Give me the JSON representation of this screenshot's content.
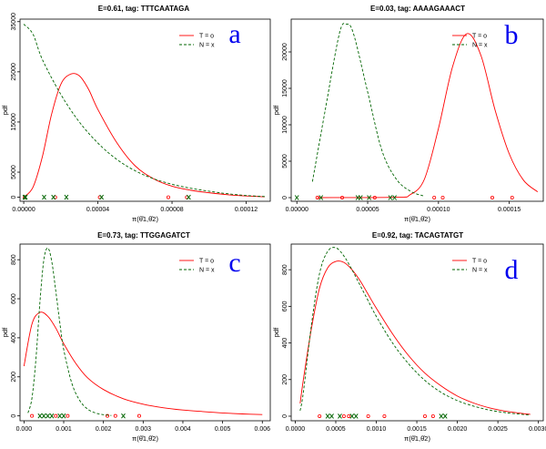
{
  "figure": {
    "colors": {
      "T": "#ff0000",
      "N": "#006400",
      "panel_letter": "#0000ee"
    }
  },
  "chart_data": [
    {
      "type": "line",
      "panel_letter": "a",
      "title": "E=0.61, tag: TTTCAATAGA",
      "xlabel": "π(θ̂1,θ̂2)",
      "ylabel": "pdf",
      "xlim": [
        -2e-06,
        0.000133
      ],
      "ylim": [
        -800,
        35500
      ],
      "x_ticks": [
        0.0,
        4e-05,
        8e-05,
        0.00012
      ],
      "x_tick_labels": [
        "0.00000",
        "0.00004",
        "0.00008",
        "0.00012"
      ],
      "y_ticks": [
        0,
        5000,
        15000,
        25000,
        35000
      ],
      "y_tick_labels": [
        "0",
        "5000",
        "15000",
        "25000",
        "35000"
      ],
      "legend": {
        "position": "top-right",
        "entries": [
          "T = o",
          "N = x"
        ]
      },
      "grid": false,
      "series": [
        {
          "name": "T = o",
          "style": "solid",
          "color": "#ff0000",
          "x": [
            0.0,
            5e-06,
            1e-05,
            1.5e-05,
            2e-05,
            2.5e-05,
            3e-05,
            3.5e-05,
            4e-05,
            5e-05,
            6e-05,
            7e-05,
            8e-05,
            9e-05,
            0.0001,
            0.00011,
            0.00012,
            0.00013
          ],
          "y": [
            0,
            2000,
            8000,
            16500,
            22500,
            24500,
            24200,
            21500,
            17500,
            11000,
            6300,
            3700,
            2200,
            1400,
            900,
            500,
            250,
            100
          ],
          "points": [
            5e-07,
            1.7e-05,
            4.1e-05,
            7.8e-05,
            8.8e-05
          ]
        },
        {
          "name": "N = x",
          "style": "dashed",
          "color": "#006400",
          "x": [
            0.0,
            5e-06,
            1e-05,
            2e-05,
            3e-05,
            4e-05,
            5e-05,
            6e-05,
            7e-05,
            8e-05,
            9e-05,
            0.0001,
            0.00011,
            0.00012,
            0.00013
          ],
          "y": [
            34500,
            32500,
            27500,
            20500,
            15000,
            10800,
            7600,
            5300,
            3700,
            2600,
            1800,
            1200,
            700,
            350,
            150
          ],
          "points": [
            5e-07,
            1e-06,
            1.1e-05,
            1.6e-05,
            2.3e-05,
            4.2e-05,
            8.9e-05
          ]
        }
      ]
    },
    {
      "type": "line",
      "panel_letter": "b",
      "title": "E=0.03, tag: AAAAGAAACT",
      "xlabel": "π(θ̂1,θ̂2)",
      "ylabel": "pdf",
      "xlim": [
        -4e-06,
        0.000174
      ],
      "ylim": [
        -500,
        24500
      ],
      "x_ticks": [
        0.0,
        5e-05,
        0.0001,
        0.00015
      ],
      "x_tick_labels": [
        "0.00000",
        "0.00005",
        "0.00010",
        "0.00015"
      ],
      "y_ticks": [
        0,
        5000,
        10000,
        15000,
        20000
      ],
      "y_tick_labels": [
        "0",
        "5000",
        "10000",
        "15000",
        "20000"
      ],
      "legend": {
        "position": "top-right",
        "entries": [
          "T = o",
          "N = x"
        ]
      },
      "grid": false,
      "series": [
        {
          "name": "T = o",
          "style": "solid",
          "color": "#ff0000",
          "x": [
            1.45e-05,
            7e-05,
            8e-05,
            9e-05,
            0.0001,
            0.00011,
            0.00012,
            0.00013,
            0.00014,
            0.00015,
            0.00016,
            0.00017
          ],
          "y": [
            0,
            50,
            400,
            2500,
            9500,
            18000,
            22500,
            19500,
            12000,
            6000,
            2400,
            800
          ],
          "points": [
            1.45e-05,
            3.2e-05,
            5.5e-05,
            9.7e-05,
            0.000103,
            0.000138,
            0.000152
          ]
        },
        {
          "name": "N = x",
          "style": "dashed",
          "color": "#006400",
          "x": [
            1.1e-05,
            2e-05,
            3e-05,
            3.5e-05,
            4e-05,
            5e-05,
            6e-05,
            7e-05,
            8e-05,
            9e-05
          ],
          "y": [
            2200,
            12000,
            22500,
            23800,
            22500,
            14500,
            6500,
            2600,
            900,
            200
          ],
          "points": [
            0.0,
            1.7e-05,
            4.3e-05,
            4.5e-05,
            5.1e-05,
            6.6e-05,
            6.9e-05
          ]
        }
      ]
    },
    {
      "type": "line",
      "panel_letter": "c",
      "title": "E=0.73, tag: TTGGAGATCT",
      "xlabel": "π(θ̂1,θ̂2)",
      "ylabel": "pdf",
      "xlim": [
        -0.0001,
        0.0062
      ],
      "ylim": [
        -25,
        880
      ],
      "x_ticks": [
        0.0,
        0.001,
        0.002,
        0.003,
        0.004,
        0.005,
        0.006
      ],
      "x_tick_labels": [
        "0.000",
        "0.001",
        "0.002",
        "0.003",
        "0.004",
        "0.005",
        "0.006"
      ],
      "y_ticks": [
        0,
        200,
        400,
        600,
        800
      ],
      "y_tick_labels": [
        "0",
        "200",
        "400",
        "600",
        "800"
      ],
      "legend": {
        "position": "top-right",
        "entries": [
          "T = o",
          "N = x"
        ]
      },
      "grid": false,
      "series": [
        {
          "name": "T = o",
          "style": "solid",
          "color": "#ff0000",
          "x": [
            0.0,
            0.0002,
            0.0004,
            0.0006,
            0.0008,
            0.001,
            0.0013,
            0.0016,
            0.002,
            0.0025,
            0.003,
            0.0035,
            0.004,
            0.0045,
            0.005,
            0.0055,
            0.006
          ],
          "y": [
            255,
            470,
            530,
            510,
            450,
            370,
            270,
            195,
            135,
            88,
            60,
            42,
            30,
            22,
            15,
            10,
            7
          ],
          "points": [
            0.0002,
            0.0008,
            0.0011,
            0.0021,
            0.0023,
            0.0029
          ]
        },
        {
          "name": "N = x",
          "style": "dashed",
          "color": "#006400",
          "x": [
            0.0001,
            0.0002,
            0.0003,
            0.0004,
            0.0005,
            0.0006,
            0.0007,
            0.0008,
            0.0009,
            0.001,
            0.0012,
            0.0014,
            0.0016,
            0.0018,
            0.002,
            0.0022
          ],
          "y": [
            15,
            90,
            290,
            580,
            800,
            860,
            790,
            640,
            480,
            340,
            170,
            80,
            35,
            15,
            6,
            2
          ],
          "points": [
            0.0004,
            0.0005,
            0.0006,
            0.0007,
            0.0009,
            0.001,
            0.0025
          ]
        }
      ]
    },
    {
      "type": "line",
      "panel_letter": "d",
      "title": "E=0.92, tag: TACAGTATGT",
      "xlabel": "π(θ̂1,θ̂2)",
      "ylabel": "pdf",
      "xlim": [
        -5e-05,
        0.00306
      ],
      "ylim": [
        -25,
        940
      ],
      "x_ticks": [
        0.0,
        0.0005,
        0.001,
        0.0015,
        0.002,
        0.0025,
        0.003
      ],
      "x_tick_labels": [
        "0.0000",
        "0.0005",
        "0.0010",
        "0.0015",
        "0.0020",
        "0.0025",
        "0.0030"
      ],
      "y_ticks": [
        0,
        200,
        400,
        600,
        800
      ],
      "y_tick_labels": [
        "0",
        "200",
        "400",
        "600",
        "800"
      ],
      "legend": {
        "position": "top-right",
        "entries": [
          "T = o",
          "N = x"
        ]
      },
      "grid": false,
      "series": [
        {
          "name": "T = o",
          "style": "solid",
          "color": "#ff0000",
          "x": [
            6e-05,
            0.0001,
            0.0002,
            0.0003,
            0.0004,
            0.0005,
            0.0006,
            0.0007,
            0.0008,
            0.0009,
            0.001,
            0.0012,
            0.0014,
            0.0016,
            0.0018,
            0.002,
            0.0022,
            0.0024,
            0.0026,
            0.0028,
            0.0029
          ],
          "y": [
            70,
            200,
            480,
            700,
            810,
            845,
            840,
            800,
            740,
            665,
            590,
            450,
            330,
            235,
            165,
            110,
            72,
            45,
            27,
            15,
            10
          ],
          "points": [
            0.0003,
            0.0006,
            0.00066,
            0.0009,
            0.0011,
            0.0016,
            0.0017
          ]
        },
        {
          "name": "N = x",
          "style": "dashed",
          "color": "#006400",
          "x": [
            6e-05,
            0.0001,
            0.0002,
            0.0003,
            0.0004,
            0.0005,
            0.0006,
            0.0007,
            0.0008,
            0.0009,
            0.001,
            0.0012,
            0.0014,
            0.0016,
            0.0018,
            0.002,
            0.0022,
            0.0024,
            0.0026,
            0.0028,
            0.0029
          ],
          "y": [
            30,
            130,
            500,
            780,
            900,
            920,
            875,
            800,
            715,
            630,
            545,
            400,
            285,
            195,
            130,
            85,
            55,
            33,
            19,
            10,
            6
          ],
          "points": [
            0.0004,
            0.00045,
            0.00055,
            0.0007,
            0.00075,
            0.0018,
            0.00185
          ]
        }
      ]
    }
  ]
}
